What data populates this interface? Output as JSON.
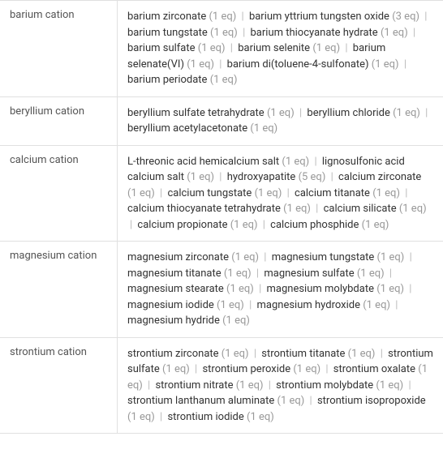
{
  "rows": [
    {
      "cation": "barium cation",
      "compounds": [
        {
          "name": "barium zirconate",
          "eq": "(1 eq)"
        },
        {
          "name": "barium yttrium tungsten oxide",
          "eq": "(3 eq)"
        },
        {
          "name": "barium tungstate",
          "eq": "(1 eq)"
        },
        {
          "name": "barium thiocyanate hydrate",
          "eq": "(1 eq)"
        },
        {
          "name": "barium sulfate",
          "eq": "(1 eq)"
        },
        {
          "name": "barium selenite",
          "eq": "(1 eq)"
        },
        {
          "name": "barium selenate(VI)",
          "eq": "(1 eq)"
        },
        {
          "name": "barium di(toluene-4-sulfonate)",
          "eq": "(1 eq)"
        },
        {
          "name": "barium periodate",
          "eq": "(1 eq)"
        }
      ]
    },
    {
      "cation": "beryllium cation",
      "compounds": [
        {
          "name": "beryllium sulfate tetrahydrate",
          "eq": "(1 eq)"
        },
        {
          "name": "beryllium chloride",
          "eq": "(1 eq)"
        },
        {
          "name": "beryllium acetylacetonate",
          "eq": "(1 eq)"
        }
      ]
    },
    {
      "cation": "calcium cation",
      "compounds": [
        {
          "name": "L-threonic acid hemicalcium salt",
          "eq": "(1 eq)"
        },
        {
          "name": "lignosulfonic acid calcium salt",
          "eq": "(1 eq)"
        },
        {
          "name": "hydroxyapatite",
          "eq": "(5 eq)"
        },
        {
          "name": "calcium zirconate",
          "eq": "(1 eq)"
        },
        {
          "name": "calcium tungstate",
          "eq": "(1 eq)"
        },
        {
          "name": "calcium titanate",
          "eq": "(1 eq)"
        },
        {
          "name": "calcium thiocyanate tetrahydrate",
          "eq": "(1 eq)"
        },
        {
          "name": "calcium silicate",
          "eq": "(1 eq)"
        },
        {
          "name": "calcium propionate",
          "eq": "(1 eq)"
        },
        {
          "name": "calcium phosphide",
          "eq": "(1 eq)"
        }
      ]
    },
    {
      "cation": "magnesium cation",
      "compounds": [
        {
          "name": "magnesium zirconate",
          "eq": "(1 eq)"
        },
        {
          "name": "magnesium tungstate",
          "eq": "(1 eq)"
        },
        {
          "name": "magnesium titanate",
          "eq": "(1 eq)"
        },
        {
          "name": "magnesium sulfate",
          "eq": "(1 eq)"
        },
        {
          "name": "magnesium stearate",
          "eq": "(1 eq)"
        },
        {
          "name": "magnesium molybdate",
          "eq": "(1 eq)"
        },
        {
          "name": "magnesium iodide",
          "eq": "(1 eq)"
        },
        {
          "name": "magnesium hydroxide",
          "eq": "(1 eq)"
        },
        {
          "name": "magnesium hydride",
          "eq": "(1 eq)"
        }
      ]
    },
    {
      "cation": "strontium cation",
      "compounds": [
        {
          "name": "strontium zirconate",
          "eq": "(1 eq)"
        },
        {
          "name": "strontium titanate",
          "eq": "(1 eq)"
        },
        {
          "name": "strontium sulfate",
          "eq": "(1 eq)"
        },
        {
          "name": "strontium peroxide",
          "eq": "(1 eq)"
        },
        {
          "name": "strontium oxalate",
          "eq": "(1 eq)"
        },
        {
          "name": "strontium nitrate",
          "eq": "(1 eq)"
        },
        {
          "name": "strontium molybdate",
          "eq": "(1 eq)"
        },
        {
          "name": "strontium lanthanum aluminate",
          "eq": "(1 eq)"
        },
        {
          "name": "strontium isopropoxide",
          "eq": "(1 eq)"
        },
        {
          "name": "strontium iodide",
          "eq": "(1 eq)"
        }
      ]
    }
  ],
  "separator": "|",
  "colors": {
    "text": "#333333",
    "eq": "#999999",
    "separator": "#bbbbbb",
    "cation": "#555555",
    "border": "#e0e0e0",
    "background": "#ffffff"
  }
}
